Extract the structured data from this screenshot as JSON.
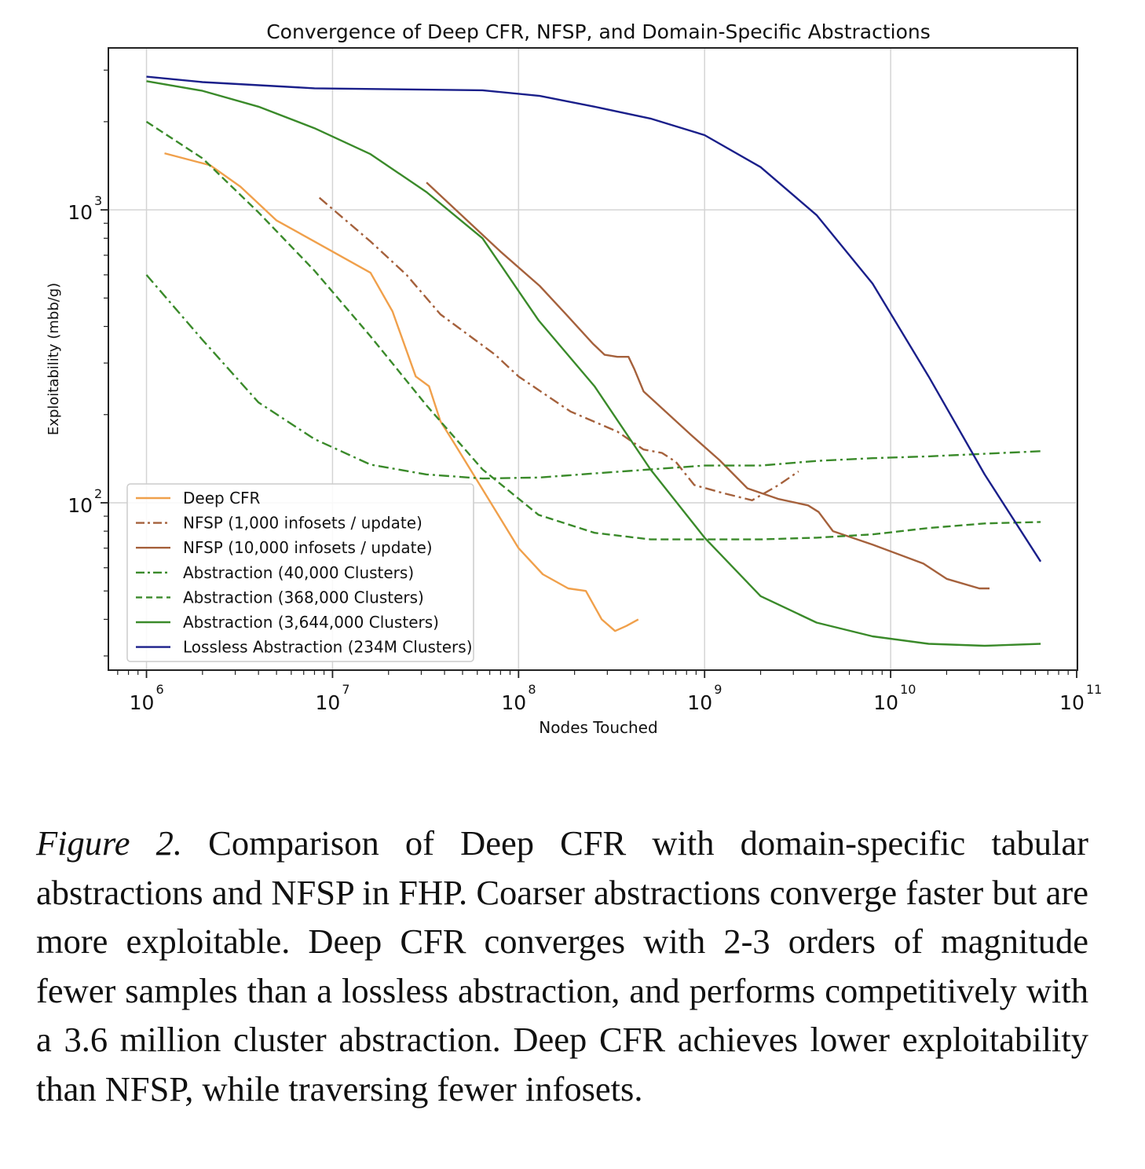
{
  "chart_data": {
    "type": "line",
    "title": "Convergence of Deep CFR, NFSP, and Domain-Specific Abstractions",
    "xlabel": "Nodes Touched",
    "ylabel": "Exploitability (mbb/g)",
    "xscale": "log",
    "yscale": "log",
    "xlim": [
      630000,
      100000000000
    ],
    "ylim": [
      27,
      3550
    ],
    "x_ticks": [
      {
        "value": 1000000,
        "base": "10",
        "exp": "6"
      },
      {
        "value": 10000000,
        "base": "10",
        "exp": "7"
      },
      {
        "value": 100000000,
        "base": "10",
        "exp": "8"
      },
      {
        "value": 1000000000,
        "base": "10",
        "exp": "9"
      },
      {
        "value": 10000000000,
        "base": "10",
        "exp": "10"
      },
      {
        "value": 100000000000,
        "base": "10",
        "exp": "11"
      }
    ],
    "y_ticks": [
      {
        "value": 100,
        "base": "10",
        "exp": "2"
      },
      {
        "value": 1000,
        "base": "10",
        "exp": "3"
      }
    ],
    "grid": true,
    "legend_position": "lower-left",
    "series": [
      {
        "name": "Deep CFR",
        "color": "#f0a04b",
        "dash": "solid",
        "points": [
          [
            1250000,
            1560
          ],
          [
            2200000,
            1420
          ],
          [
            3200000,
            1200
          ],
          [
            5000000,
            920
          ],
          [
            8000000,
            780
          ],
          [
            16000000,
            610
          ],
          [
            21000000,
            450
          ],
          [
            28000000,
            270
          ],
          [
            33000000,
            250
          ],
          [
            38000000,
            190
          ],
          [
            45000000,
            160
          ],
          [
            62000000,
            115
          ],
          [
            100000000,
            70
          ],
          [
            135000000,
            57
          ],
          [
            185000000,
            51
          ],
          [
            230000000,
            50
          ],
          [
            280000000,
            40
          ],
          [
            330000000,
            36.5
          ],
          [
            380000000,
            38
          ],
          [
            440000000,
            40
          ]
        ]
      },
      {
        "name": "NFSP (1,000 infosets / update)",
        "color": "#a5613c",
        "dash": "dashdot",
        "points": [
          [
            8500000,
            1100
          ],
          [
            16000000,
            780
          ],
          [
            25000000,
            600
          ],
          [
            38000000,
            440
          ],
          [
            55000000,
            370
          ],
          [
            75000000,
            320
          ],
          [
            100000000,
            270
          ],
          [
            190000000,
            205
          ],
          [
            340000000,
            175
          ],
          [
            470000000,
            152
          ],
          [
            590000000,
            148
          ],
          [
            700000000,
            138
          ],
          [
            880000000,
            115
          ],
          [
            1250000000,
            108
          ],
          [
            1800000000,
            102
          ],
          [
            2500000000,
            115
          ],
          [
            3200000000,
            128
          ]
        ]
      },
      {
        "name": "NFSP (10,000 infosets / update)",
        "color": "#a5613c",
        "dash": "solid",
        "points": [
          [
            32000000,
            1240
          ],
          [
            80000000,
            720
          ],
          [
            130000000,
            550
          ],
          [
            180000000,
            440
          ],
          [
            250000000,
            350
          ],
          [
            290000000,
            320
          ],
          [
            340000000,
            315
          ],
          [
            390000000,
            315
          ],
          [
            420000000,
            285
          ],
          [
            470000000,
            240
          ],
          [
            850000000,
            170
          ],
          [
            1200000000,
            140
          ],
          [
            1700000000,
            112
          ],
          [
            2500000000,
            103
          ],
          [
            3600000000,
            98
          ],
          [
            4100000000,
            93
          ],
          [
            4900000000,
            80
          ],
          [
            8000000000,
            72
          ],
          [
            15000000000,
            62
          ],
          [
            20000000000,
            55
          ],
          [
            30000000000,
            51
          ],
          [
            34000000000,
            51
          ]
        ]
      },
      {
        "name": "Abstraction (40,000 Clusters)",
        "color": "#3a8a2a",
        "dash": "dashdot",
        "points": [
          [
            1000000,
            600
          ],
          [
            2000000,
            360
          ],
          [
            4000000,
            220
          ],
          [
            8000000,
            165
          ],
          [
            16000000,
            135
          ],
          [
            32000000,
            125
          ],
          [
            64000000,
            121
          ],
          [
            130000000,
            122
          ],
          [
            256000000,
            126
          ],
          [
            512000000,
            130
          ],
          [
            1000000000,
            134
          ],
          [
            2000000000,
            134
          ],
          [
            4000000000,
            139
          ],
          [
            8000000000,
            142
          ],
          [
            16000000000,
            144
          ],
          [
            32000000000,
            147
          ],
          [
            64000000000,
            150
          ]
        ]
      },
      {
        "name": "Abstraction (368,000 Clusters)",
        "color": "#3a8a2a",
        "dash": "dashed",
        "points": [
          [
            1000000,
            2000
          ],
          [
            2000000,
            1500
          ],
          [
            4000000,
            980
          ],
          [
            8000000,
            620
          ],
          [
            16000000,
            370
          ],
          [
            32000000,
            215
          ],
          [
            64000000,
            130
          ],
          [
            128000000,
            91
          ],
          [
            256000000,
            79
          ],
          [
            512000000,
            75
          ],
          [
            1000000000,
            75
          ],
          [
            2000000000,
            75
          ],
          [
            4000000000,
            76
          ],
          [
            8000000000,
            78
          ],
          [
            16000000000,
            82
          ],
          [
            32000000000,
            85
          ],
          [
            64000000000,
            86
          ]
        ]
      },
      {
        "name": "Abstraction (3,644,000 Clusters)",
        "color": "#3a8a2a",
        "dash": "solid",
        "points": [
          [
            1000000,
            2750
          ],
          [
            2000000,
            2550
          ],
          [
            4000000,
            2250
          ],
          [
            8000000,
            1900
          ],
          [
            16000000,
            1550
          ],
          [
            32000000,
            1150
          ],
          [
            64000000,
            800
          ],
          [
            128000000,
            420
          ],
          [
            256000000,
            250
          ],
          [
            512000000,
            130
          ],
          [
            1000000000,
            76
          ],
          [
            2000000000,
            48
          ],
          [
            4000000000,
            39
          ],
          [
            8000000000,
            35
          ],
          [
            16000000000,
            33
          ],
          [
            32000000000,
            32.5
          ],
          [
            64000000000,
            33
          ]
        ]
      },
      {
        "name": "Lossless Abstraction (234M Clusters)",
        "color": "#1a1f8a",
        "dash": "solid",
        "points": [
          [
            1000000,
            2850
          ],
          [
            2000000,
            2730
          ],
          [
            8000000,
            2600
          ],
          [
            64000000,
            2560
          ],
          [
            130000000,
            2450
          ],
          [
            256000000,
            2250
          ],
          [
            512000000,
            2050
          ],
          [
            1000000000,
            1800
          ],
          [
            2000000000,
            1400
          ],
          [
            4000000000,
            960
          ],
          [
            8000000000,
            560
          ],
          [
            16000000000,
            270
          ],
          [
            32000000000,
            125
          ],
          [
            64000000000,
            63
          ]
        ]
      }
    ]
  },
  "caption": {
    "label": "Figure 2.",
    "text": " Comparison of Deep CFR with domain-specific tabular abstractions and NFSP in FHP. Coarser abstractions converge faster but are more exploitable. Deep CFR converges with 2-3 orders of magnitude fewer samples than a lossless abstraction, and performs competitively with a 3.6 million cluster abstraction.  Deep CFR achieves lower exploitability than NFSP, while traversing fewer infosets."
  }
}
